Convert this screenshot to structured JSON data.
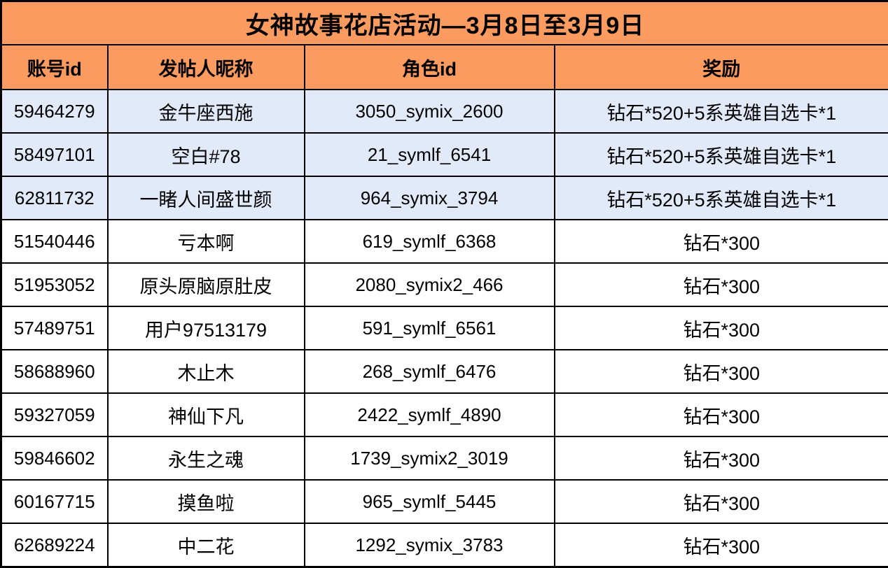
{
  "title": "女神故事花店活动—3月8日至3月9日",
  "colors": {
    "header_bg": "#FB9B5F",
    "highlight_row_bg": "#E2E9F8",
    "row_bg": "#FFFFFF",
    "border": "#000000",
    "text": "#000000"
  },
  "table": {
    "columns": [
      {
        "key": "account_id",
        "label": "账号id"
      },
      {
        "key": "nickname",
        "label": "发帖人昵称"
      },
      {
        "key": "role_id",
        "label": "角色id"
      },
      {
        "key": "reward",
        "label": "奖励"
      }
    ],
    "rows": [
      {
        "account_id": "59464279",
        "nickname": "金牛座西施",
        "role_id": "3050_symix_2600",
        "reward": "钻石*520+5系英雄自选卡*1",
        "highlighted": true
      },
      {
        "account_id": "58497101",
        "nickname": "空白#78",
        "role_id": "21_symlf_6541",
        "reward": "钻石*520+5系英雄自选卡*1",
        "highlighted": true
      },
      {
        "account_id": "62811732",
        "nickname": "一睹人间盛世颜",
        "role_id": "964_symix_3794",
        "reward": "钻石*520+5系英雄自选卡*1",
        "highlighted": true
      },
      {
        "account_id": "51540446",
        "nickname": "亏本啊",
        "role_id": "619_symlf_6368",
        "reward": "钻石*300",
        "highlighted": false
      },
      {
        "account_id": "51953052",
        "nickname": "原头原脑原肚皮",
        "role_id": "2080_symix2_466",
        "reward": "钻石*300",
        "highlighted": false
      },
      {
        "account_id": "57489751",
        "nickname": "用户97513179",
        "role_id": "591_symlf_6561",
        "reward": "钻石*300",
        "highlighted": false
      },
      {
        "account_id": "58688960",
        "nickname": "木止木",
        "role_id": "268_symlf_6476",
        "reward": "钻石*300",
        "highlighted": false
      },
      {
        "account_id": "59327059",
        "nickname": "神仙下凡",
        "role_id": "2422_symlf_4890",
        "reward": "钻石*300",
        "highlighted": false
      },
      {
        "account_id": "59846602",
        "nickname": "永生之魂",
        "role_id": "1739_symix2_3019",
        "reward": "钻石*300",
        "highlighted": false
      },
      {
        "account_id": "60167715",
        "nickname": "摸鱼啦",
        "role_id": "965_symlf_5445",
        "reward": "钻石*300",
        "highlighted": false
      },
      {
        "account_id": "62689224",
        "nickname": "中二花",
        "role_id": "1292_symix_3783",
        "reward": "钻石*300",
        "highlighted": false
      }
    ]
  }
}
